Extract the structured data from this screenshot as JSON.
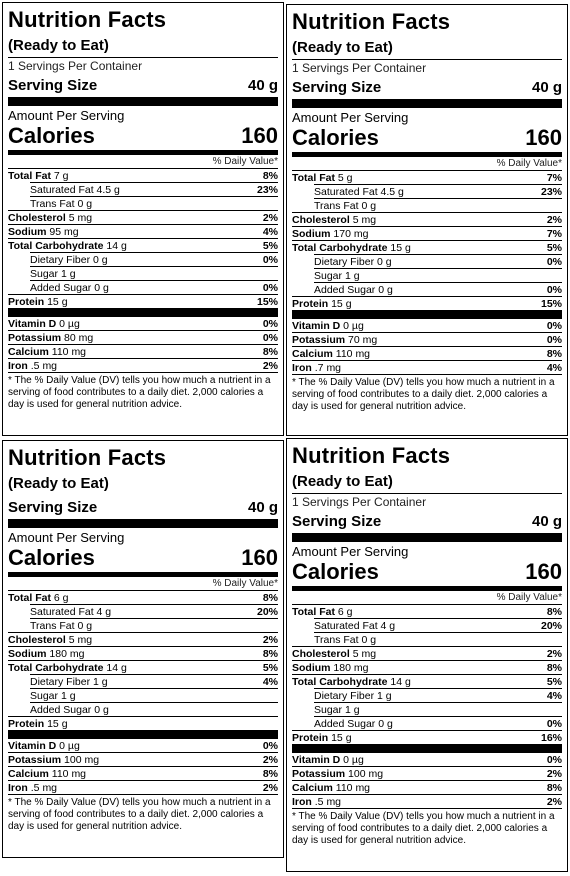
{
  "labels": [
    {
      "title": "Nutrition Facts",
      "subtitle": "(Ready to Eat)",
      "servings": "1 Servings Per Container",
      "serving_size_label": "Serving Size",
      "serving_size": "40 g",
      "amount_label": "Amount Per Serving",
      "calories_label": "Calories",
      "calories": "160",
      "dv_header": "% Daily Value*",
      "rows": [
        {
          "name": "Total Fat",
          "amount": "7 g",
          "dv": "8%"
        },
        {
          "name": "Saturated Fat",
          "amount": "4.5 g",
          "dv": "23%"
        },
        {
          "name": "Trans Fat",
          "amount": "0 g",
          "dv": ""
        },
        {
          "name": "Cholesterol",
          "amount": "5 mg",
          "dv": "2%"
        },
        {
          "name": "Sodium",
          "amount": "95 mg",
          "dv": "4%"
        },
        {
          "name": "Total Carbohydrate",
          "amount": "14 g",
          "dv": "5%"
        },
        {
          "name": "Dietary Fiber",
          "amount": "0 g",
          "dv": "0%"
        },
        {
          "name": "Sugar",
          "amount": "1 g",
          "dv": ""
        },
        {
          "name": "Added Sugar",
          "amount": "0 g",
          "dv": "0%"
        },
        {
          "name": "Protein",
          "amount": "15 g",
          "dv": "15%"
        },
        {
          "name": "Vitamin D",
          "amount": "0 µg",
          "dv": "0%"
        },
        {
          "name": "Potassium",
          "amount": "80 mg",
          "dv": "0%"
        },
        {
          "name": "Calcium",
          "amount": "110 mg",
          "dv": "8%"
        },
        {
          "name": "Iron",
          "amount": ".5 mg",
          "dv": "2%"
        }
      ],
      "footnote": "* The % Daily Value (DV) tells you how much a nutrient in a serving of food contributes to a daily diet. 2,000 calories a day is used for general nutrition advice."
    },
    {
      "title": "Nutrition Facts",
      "subtitle": "(Ready to Eat)",
      "servings": "1 Servings Per Container",
      "serving_size_label": "Serving Size",
      "serving_size": "40 g",
      "amount_label": "Amount Per Serving",
      "calories_label": "Calories",
      "calories": "160",
      "dv_header": "% Daily Value*",
      "rows": [
        {
          "name": "Total Fat",
          "amount": "5 g",
          "dv": "7%"
        },
        {
          "name": "Saturated Fat",
          "amount": "4.5 g",
          "dv": "23%"
        },
        {
          "name": "Trans Fat",
          "amount": "0 g",
          "dv": ""
        },
        {
          "name": "Cholesterol",
          "amount": "5 mg",
          "dv": "2%"
        },
        {
          "name": "Sodium",
          "amount": "170 mg",
          "dv": "7%"
        },
        {
          "name": "Total Carbohydrate",
          "amount": "15 g",
          "dv": "5%"
        },
        {
          "name": "Dietary Fiber",
          "amount": "0 g",
          "dv": "0%"
        },
        {
          "name": "Sugar",
          "amount": "1 g",
          "dv": ""
        },
        {
          "name": "Added Sugar",
          "amount": "0 g",
          "dv": "0%"
        },
        {
          "name": "Protein",
          "amount": "15 g",
          "dv": "15%"
        },
        {
          "name": "Vitamin D",
          "amount": "0 µg",
          "dv": "0%"
        },
        {
          "name": "Potassium",
          "amount": "70 mg",
          "dv": "0%"
        },
        {
          "name": "Calcium",
          "amount": "110 mg",
          "dv": "8%"
        },
        {
          "name": "Iron",
          "amount": ".7 mg",
          "dv": "4%"
        }
      ],
      "footnote": "* The % Daily Value (DV) tells you how much a nutrient in a serving of food contributes to a daily diet. 2,000 calories a day is used for general nutrition advice."
    },
    {
      "title": "Nutrition Facts",
      "subtitle": "(Ready to Eat)",
      "servings": "",
      "serving_size_label": "Serving Size",
      "serving_size": "40 g",
      "amount_label": "Amount Per Serving",
      "calories_label": "Calories",
      "calories": "160",
      "dv_header": "% Daily Value*",
      "rows": [
        {
          "name": "Total Fat",
          "amount": "6 g",
          "dv": "8%"
        },
        {
          "name": "Saturated Fat",
          "amount": "4 g",
          "dv": "20%"
        },
        {
          "name": "Trans Fat",
          "amount": "0 g",
          "dv": ""
        },
        {
          "name": "Cholesterol",
          "amount": "5 mg",
          "dv": "2%"
        },
        {
          "name": "Sodium",
          "amount": "180 mg",
          "dv": "8%"
        },
        {
          "name": "Total Carbohydrate",
          "amount": "14 g",
          "dv": "5%"
        },
        {
          "name": "Dietary Fiber",
          "amount": "1 g",
          "dv": "4%"
        },
        {
          "name": "Sugar",
          "amount": "1 g",
          "dv": ""
        },
        {
          "name": "Added Sugar",
          "amount": "0 g",
          "dv": ""
        },
        {
          "name": "Protein",
          "amount": "15 g",
          "dv": ""
        },
        {
          "name": "Vitamin D",
          "amount": "0 µg",
          "dv": "0%"
        },
        {
          "name": "Potassium",
          "amount": "100 mg",
          "dv": "2%"
        },
        {
          "name": "Calcium",
          "amount": "110 mg",
          "dv": "8%"
        },
        {
          "name": "Iron",
          "amount": ".5 mg",
          "dv": "2%"
        }
      ],
      "footnote": "* The % Daily Value (DV) tells you how much a nutrient in a serving of food contributes to a daily diet. 2,000 calories a day is used for general nutrition advice."
    },
    {
      "title": "Nutrition Facts",
      "subtitle": "(Ready to Eat)",
      "servings": "1 Servings Per Container",
      "serving_size_label": "Serving Size",
      "serving_size": "40 g",
      "amount_label": "Amount Per Serving",
      "calories_label": "Calories",
      "calories": "160",
      "dv_header": "% Daily Value*",
      "rows": [
        {
          "name": "Total Fat",
          "amount": "6 g",
          "dv": "8%"
        },
        {
          "name": "Saturated Fat",
          "amount": "4 g",
          "dv": "20%"
        },
        {
          "name": "Trans Fat",
          "amount": "0 g",
          "dv": ""
        },
        {
          "name": "Cholesterol",
          "amount": "5 mg",
          "dv": "2%"
        },
        {
          "name": "Sodium",
          "amount": "180 mg",
          "dv": "8%"
        },
        {
          "name": "Total Carbohydrate",
          "amount": "14 g",
          "dv": "5%"
        },
        {
          "name": "Dietary Fiber",
          "amount": "1 g",
          "dv": "4%"
        },
        {
          "name": "Sugar",
          "amount": "1 g",
          "dv": ""
        },
        {
          "name": "Added Sugar",
          "amount": "0 g",
          "dv": "0%"
        },
        {
          "name": "Protein",
          "amount": "15 g",
          "dv": "16%"
        },
        {
          "name": "Vitamin D",
          "amount": "0 µg",
          "dv": "0%"
        },
        {
          "name": "Potassium",
          "amount": "100 mg",
          "dv": "2%"
        },
        {
          "name": "Calcium",
          "amount": "110 mg",
          "dv": "8%"
        },
        {
          "name": "Iron",
          "amount": ".5 mg",
          "dv": "2%"
        }
      ],
      "footnote": "* The % Daily Value (DV) tells you how much a nutrient in a serving of food contributes to a daily diet. 2,000 calories a day is used for general nutrition advice."
    }
  ]
}
